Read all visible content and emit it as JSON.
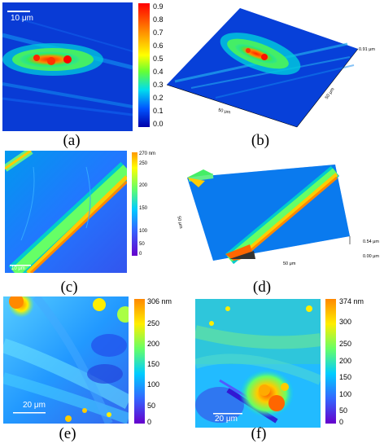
{
  "panels": {
    "a": {
      "caption": "(a)",
      "scalebar": "10 μm",
      "colorbar_ticks": [
        "0.9",
        "0.8",
        "0.7",
        "0.6",
        "0.5",
        "0.4",
        "0.3",
        "0.2",
        "0.1",
        "0.0"
      ],
      "colormap": [
        "#ff0000",
        "#ffcc00",
        "#66ff33",
        "#00ffcc",
        "#0066ff",
        "#0000aa"
      ]
    },
    "b": {
      "caption": "(b)",
      "z_label": "0.91 μm",
      "x_label": "50 μm",
      "y_label": "50 μm"
    },
    "c": {
      "caption": "(c)",
      "scalebar": "10 μm",
      "colorbar_ticks": [
        "270 nm",
        "250",
        "200",
        "150",
        "100",
        "50",
        "0"
      ],
      "colormap": [
        "#ffaa00",
        "#ffff00",
        "#66ff66",
        "#00ccff",
        "#3366ff",
        "#6600cc"
      ]
    },
    "d": {
      "caption": "(d)",
      "z_top": "0.54 μm",
      "z_bottom": "0.00 μm",
      "x_label": "50 μm",
      "y_label": "50 μm"
    },
    "e": {
      "caption": "(e)",
      "scalebar": "20 μm",
      "colorbar_ticks": [
        "306 nm",
        "250",
        "200",
        "150",
        "100",
        "50",
        "0"
      ],
      "colormap": [
        "#ff9900",
        "#ffff00",
        "#66ff66",
        "#00ccff",
        "#3366ff",
        "#6600cc"
      ]
    },
    "f": {
      "caption": "(f)",
      "scalebar": "20 μm",
      "colorbar_ticks": [
        "374 nm",
        "300",
        "250",
        "200",
        "150",
        "100",
        "50",
        "0"
      ],
      "colormap": [
        "#ff6600",
        "#ffff00",
        "#66ff66",
        "#00ccff",
        "#3366ff",
        "#6600cc"
      ]
    }
  }
}
